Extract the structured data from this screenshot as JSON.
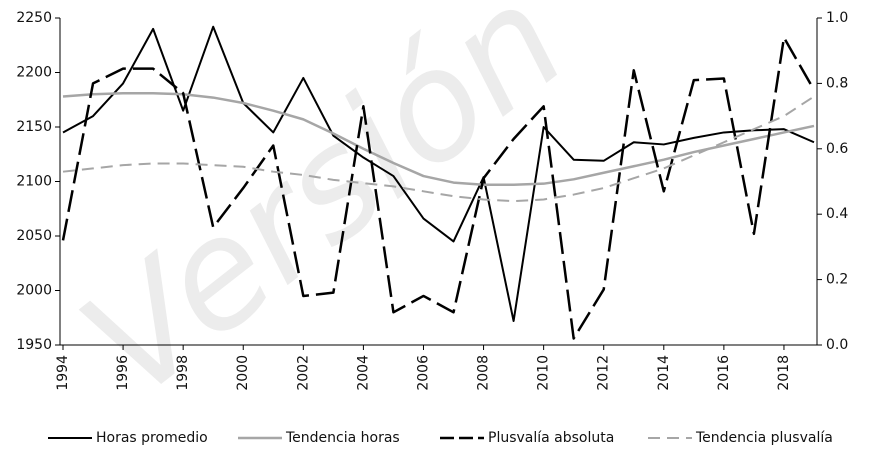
{
  "chart_data": {
    "type": "line",
    "watermark": "Versión",
    "x": [
      1994,
      1995,
      1996,
      1997,
      1998,
      1999,
      2000,
      2001,
      2002,
      2003,
      2004,
      2005,
      2006,
      2007,
      2008,
      2009,
      2010,
      2011,
      2012,
      2013,
      2014,
      2015,
      2016,
      2017,
      2018,
      2019
    ],
    "series": [
      {
        "name": "Horas promedio",
        "color": "#000000",
        "style": "solid",
        "width": 2,
        "values": [
          2145,
          2160,
          2190,
          2240,
          2165,
          2242,
          2172,
          2145,
          2195,
          2142,
          2122,
          2105,
          2066,
          2045,
          2104,
          1972,
          2150,
          2120,
          2119,
          2136,
          2134,
          2140,
          2145,
          2147,
          2148,
          2136
        ]
      },
      {
        "name": "Tendencia horas",
        "color": "#a6a6a6",
        "style": "solid",
        "width": 2.5,
        "values": [
          2178,
          2180,
          2181,
          2181,
          2180,
          2177,
          2172,
          2165,
          2157,
          2144,
          2130,
          2117,
          2105,
          2099,
          2097,
          2097,
          2098,
          2102,
          2108,
          2114,
          2120,
          2127,
          2133,
          2139,
          2145,
          2151
        ]
      },
      {
        "name": "Plusvalía absoluta",
        "color": "#000000",
        "style": "dashed",
        "width": 2.5,
        "axis": "y2",
        "values": [
          0.32,
          0.8,
          0.845,
          0.845,
          0.77,
          0.36,
          0.48,
          0.61,
          0.15,
          0.16,
          0.73,
          0.1,
          0.15,
          0.1,
          0.51,
          0.63,
          0.73,
          0.02,
          0.17,
          0.84,
          0.47,
          0.81,
          0.815,
          0.34,
          0.94,
          0.78
        ]
      },
      {
        "name": "Tendencia plusvalía",
        "color": "#a6a6a6",
        "style": "dashed",
        "width": 2,
        "axis": "y2",
        "values": [
          0.53,
          0.54,
          0.55,
          0.555,
          0.555,
          0.55,
          0.545,
          0.53,
          0.52,
          0.505,
          0.495,
          0.485,
          0.47,
          0.455,
          0.445,
          0.44,
          0.445,
          0.46,
          0.48,
          0.51,
          0.54,
          0.58,
          0.62,
          0.66,
          0.7,
          0.76
        ]
      }
    ],
    "xlim": [
      1993.9,
      2019.1
    ],
    "xticks": [
      1994,
      1996,
      1998,
      2000,
      2002,
      2004,
      2006,
      2008,
      2010,
      2012,
      2014,
      2016,
      2018
    ],
    "ylim": [
      1950,
      2250
    ],
    "yticks": [
      1950,
      2000,
      2050,
      2100,
      2150,
      2200,
      2250
    ],
    "y2lim": [
      0,
      1
    ],
    "y2ticks": [
      {
        "value": 0,
        "label": "0.0"
      },
      {
        "value": 0.2,
        "label": "0.2"
      },
      {
        "value": 0.4,
        "label": "0.4"
      },
      {
        "value": 0.6,
        "label": "0.6"
      },
      {
        "value": 0.8,
        "label": "0.8"
      },
      {
        "value": 1,
        "label": "1.0"
      }
    ],
    "legend": "bottom"
  }
}
